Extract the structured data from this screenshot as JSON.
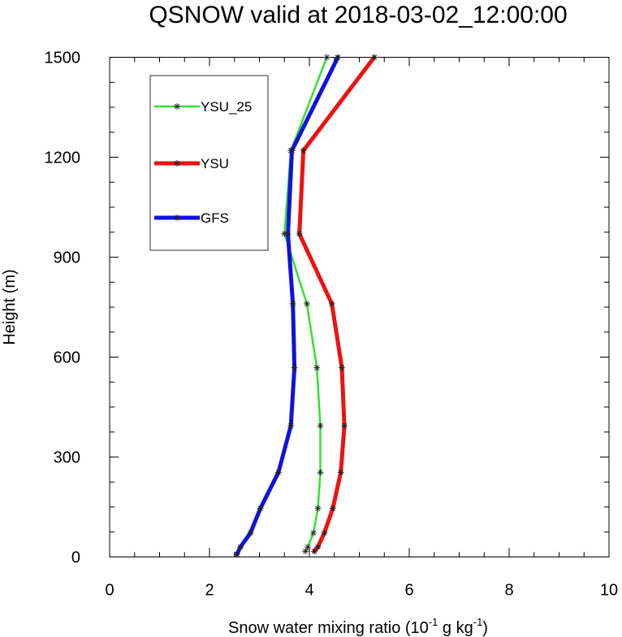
{
  "chart_data": {
    "type": "line",
    "title": "QSNOW valid at 2018-03-02_12:00:00",
    "xlabel_main": "Snow water mixing ratio (10",
    "xlabel_sup1": "-1",
    "xlabel_mid": " g kg",
    "xlabel_sup2": "-1",
    "xlabel_end": ")",
    "ylabel": "Height (m)",
    "xlim": [
      0,
      10
    ],
    "ylim": [
      0,
      1500
    ],
    "xticks": [
      0,
      2,
      4,
      6,
      8,
      10
    ],
    "yticks": [
      0,
      300,
      600,
      900,
      1200,
      1500
    ],
    "legend_position": "top-left",
    "series": [
      {
        "name": "YSU_25",
        "color": "#33e033",
        "width": 2.5,
        "points": [
          [
            3.92,
            17
          ],
          [
            3.97,
            30
          ],
          [
            4.08,
            72
          ],
          [
            4.17,
            146
          ],
          [
            4.22,
            254
          ],
          [
            4.22,
            394
          ],
          [
            4.15,
            568
          ],
          [
            3.95,
            760
          ],
          [
            3.5,
            970
          ],
          [
            3.63,
            1220
          ],
          [
            4.35,
            1500
          ]
        ]
      },
      {
        "name": "YSU",
        "color": "#ee1111",
        "width": 5,
        "points": [
          [
            4.1,
            17
          ],
          [
            4.17,
            30
          ],
          [
            4.3,
            72
          ],
          [
            4.47,
            146
          ],
          [
            4.63,
            254
          ],
          [
            4.7,
            394
          ],
          [
            4.65,
            568
          ],
          [
            4.45,
            760
          ],
          [
            3.8,
            970
          ],
          [
            3.88,
            1220
          ],
          [
            5.3,
            1500
          ]
        ]
      },
      {
        "name": "GFS",
        "color": "#1111dd",
        "width": 5,
        "points": [
          [
            2.55,
            8
          ],
          [
            2.62,
            30
          ],
          [
            2.82,
            72
          ],
          [
            3.02,
            146
          ],
          [
            3.38,
            254
          ],
          [
            3.63,
            394
          ],
          [
            3.7,
            568
          ],
          [
            3.67,
            760
          ],
          [
            3.57,
            970
          ],
          [
            3.65,
            1220
          ],
          [
            4.57,
            1500
          ]
        ]
      }
    ]
  }
}
